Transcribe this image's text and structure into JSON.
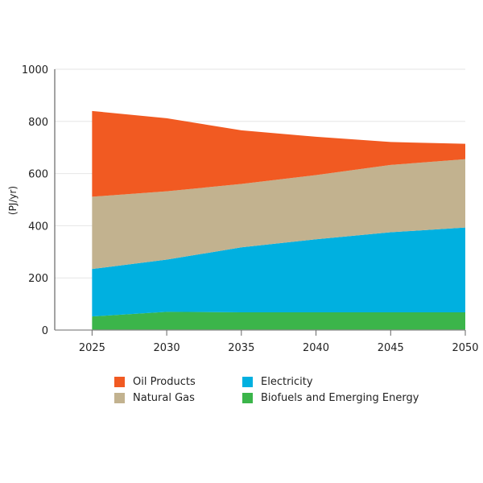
{
  "chart_data": {
    "type": "area",
    "stacked": true,
    "title": "",
    "xlabel": "",
    "ylabel": "(PJ/yr)",
    "x": [
      2025,
      2030,
      2035,
      2040,
      2045,
      2050
    ],
    "x_tick_labels": [
      "2025",
      "2030",
      "2035",
      "2040",
      "2045",
      "2050"
    ],
    "xlim": [
      2022.5,
      2050
    ],
    "ylim": [
      0,
      1000
    ],
    "y_ticks": [
      0,
      200,
      400,
      600,
      800,
      1000
    ],
    "y_tick_labels": [
      "0",
      "200",
      "400",
      "600",
      "800",
      "1000"
    ],
    "grid": true,
    "legend_position": "bottom",
    "series": [
      {
        "name": "Biofuels and Emerging Energy",
        "color": "#3bb54a",
        "values": [
          52,
          70,
          68,
          68,
          68,
          68
        ]
      },
      {
        "name": "Electricity",
        "color": "#00b0e0",
        "values": [
          182,
          200,
          249,
          280,
          307,
          325
        ]
      },
      {
        "name": "Natural Gas",
        "color": "#c2b28f",
        "values": [
          277,
          262,
          243,
          246,
          258,
          262
        ]
      },
      {
        "name": "Oil Products",
        "color": "#f15a22",
        "values": [
          329,
          280,
          206,
          147,
          88,
          59
        ]
      }
    ],
    "legend_order": [
      "Oil Products",
      "Electricity",
      "Natural Gas",
      "Biofuels and Emerging Energy"
    ]
  }
}
